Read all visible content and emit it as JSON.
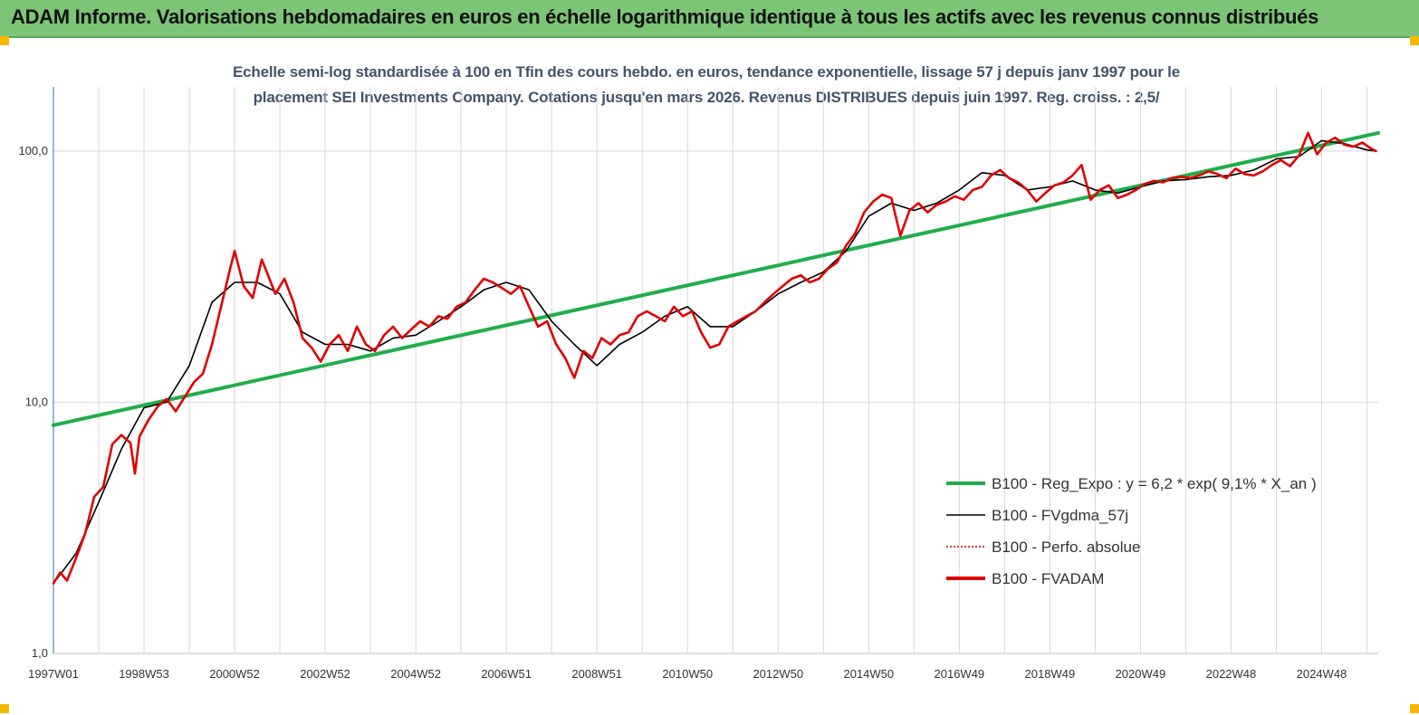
{
  "header": {
    "title": "ADAM Informe. Valorisations hebdomadaires en euros en échelle logarithmique identique à tous les actifs avec les revenus connus distribués"
  },
  "chart_data": {
    "type": "line",
    "title_lines": [
      "Echelle semi-log standardisée à 100 en Tfin des cours hebdo. en euros, tendance exponentielle, lissage 57 j depuis janv 1997 pour le",
      "placement SEI Investments Company. Cotations jusqu'en mars 2026. Revenus DISTRIBUES depuis juin 1997. Reg. croiss. : 2,5/"
    ],
    "y_scale": "log",
    "ylim": [
      1,
      180
    ],
    "y_ticks": [
      {
        "value": 1,
        "label": "1,0"
      },
      {
        "value": 10,
        "label": "10,0"
      },
      {
        "value": 100,
        "label": "100,0"
      }
    ],
    "xlim": [
      1997.0,
      2026.25
    ],
    "x_ticks": [
      {
        "value": 1997.0,
        "label": "1997W01"
      },
      {
        "value": 1999.0,
        "label": "1998W53"
      },
      {
        "value": 2001.0,
        "label": "2000W52"
      },
      {
        "value": 2003.0,
        "label": "2002W52"
      },
      {
        "value": 2005.0,
        "label": "2004W52"
      },
      {
        "value": 2007.0,
        "label": "2006W51"
      },
      {
        "value": 2009.0,
        "label": "2008W51"
      },
      {
        "value": 2011.0,
        "label": "2010W50"
      },
      {
        "value": 2013.0,
        "label": "2012W50"
      },
      {
        "value": 2015.0,
        "label": "2014W50"
      },
      {
        "value": 2017.0,
        "label": "2016W49"
      },
      {
        "value": 2019.0,
        "label": "2018W49"
      },
      {
        "value": 2021.0,
        "label": "2020W49"
      },
      {
        "value": 2023.0,
        "label": "2022W48"
      },
      {
        "value": 2025.0,
        "label": "2024W48"
      }
    ],
    "grid": "vertical",
    "legend_position": "bottom-right",
    "series": [
      {
        "name": "B100 - Reg_Expo : y = 6,2 * exp( 9,1% *  X_an )",
        "color": "#1fae4b",
        "style": "solid-thick",
        "x": [
          1997.0,
          2026.25
        ],
        "y": [
          8.1,
          118
        ]
      },
      {
        "name": "B100 - FVgdma_57j",
        "color": "#000000",
        "style": "solid-thin",
        "x": [
          1997.0,
          1997.5,
          1998.0,
          1998.5,
          1999.0,
          1999.5,
          2000.0,
          2000.5,
          2001.0,
          2001.5,
          2002.0,
          2002.5,
          2003.0,
          2003.5,
          2004.0,
          2004.5,
          2005.0,
          2005.5,
          2006.0,
          2006.5,
          2007.0,
          2007.5,
          2008.0,
          2008.5,
          2009.0,
          2009.5,
          2010.0,
          2010.5,
          2011.0,
          2011.5,
          2012.0,
          2012.5,
          2013.0,
          2013.5,
          2014.0,
          2014.5,
          2015.0,
          2015.5,
          2016.0,
          2016.5,
          2017.0,
          2017.5,
          2018.0,
          2018.5,
          2019.0,
          2019.5,
          2020.0,
          2020.5,
          2021.0,
          2021.5,
          2022.0,
          2022.5,
          2023.0,
          2023.5,
          2024.0,
          2024.5,
          2025.0,
          2025.5,
          2026.0,
          2026.2
        ],
        "y": [
          1.9,
          2.5,
          4.0,
          6.5,
          9.5,
          10.0,
          14.0,
          25.0,
          30.0,
          30.0,
          27.0,
          19.0,
          17.0,
          17.0,
          16.0,
          18.0,
          18.5,
          21.0,
          24.0,
          28.0,
          30.0,
          28.0,
          21.0,
          17.0,
          14.0,
          17.0,
          19.0,
          22.0,
          24.0,
          20.0,
          20.0,
          23.0,
          27.0,
          30.0,
          33.0,
          40.0,
          55.0,
          62.0,
          58.0,
          62.0,
          70.0,
          82.0,
          80.0,
          70.0,
          72.0,
          76.0,
          70.0,
          68.0,
          72.0,
          76.0,
          77.0,
          79.0,
          80.0,
          84.0,
          93.0,
          95.0,
          110.0,
          107.0,
          101.0,
          100.0
        ]
      },
      {
        "name": "B100 - Perfo. absolue",
        "color": "#c00000",
        "style": "dotted",
        "x": [],
        "y": []
      },
      {
        "name": "B100 - FVADAM",
        "color": "#e00000",
        "style": "solid-thick",
        "x": [
          1997.0,
          1997.15,
          1997.3,
          1997.5,
          1997.7,
          1997.9,
          1998.1,
          1998.3,
          1998.5,
          1998.7,
          1998.8,
          1998.9,
          1999.1,
          1999.3,
          1999.5,
          1999.7,
          1999.9,
          2000.1,
          2000.3,
          2000.5,
          2000.7,
          2000.9,
          2001.0,
          2001.2,
          2001.4,
          2001.6,
          2001.8,
          2001.9,
          2002.1,
          2002.3,
          2002.5,
          2002.7,
          2002.9,
          2003.1,
          2003.3,
          2003.5,
          2003.7,
          2003.9,
          2004.1,
          2004.3,
          2004.5,
          2004.7,
          2004.9,
          2005.1,
          2005.3,
          2005.5,
          2005.7,
          2005.9,
          2006.1,
          2006.3,
          2006.5,
          2006.7,
          2006.9,
          2007.1,
          2007.3,
          2007.5,
          2007.7,
          2007.9,
          2008.1,
          2008.3,
          2008.5,
          2008.7,
          2008.9,
          2009.1,
          2009.3,
          2009.5,
          2009.7,
          2009.9,
          2010.1,
          2010.3,
          2010.5,
          2010.7,
          2010.9,
          2011.1,
          2011.3,
          2011.5,
          2011.7,
          2011.9,
          2012.1,
          2012.3,
          2012.5,
          2012.7,
          2012.9,
          2013.1,
          2013.3,
          2013.5,
          2013.7,
          2013.9,
          2014.1,
          2014.3,
          2014.5,
          2014.7,
          2014.9,
          2015.1,
          2015.3,
          2015.5,
          2015.7,
          2015.9,
          2016.1,
          2016.3,
          2016.5,
          2016.7,
          2016.9,
          2017.1,
          2017.3,
          2017.5,
          2017.7,
          2017.9,
          2018.1,
          2018.3,
          2018.5,
          2018.7,
          2018.9,
          2019.1,
          2019.3,
          2019.5,
          2019.7,
          2019.9,
          2020.1,
          2020.3,
          2020.5,
          2020.7,
          2020.9,
          2021.1,
          2021.3,
          2021.5,
          2021.7,
          2021.9,
          2022.1,
          2022.3,
          2022.5,
          2022.7,
          2022.9,
          2023.1,
          2023.3,
          2023.5,
          2023.7,
          2023.9,
          2024.1,
          2024.3,
          2024.5,
          2024.7,
          2024.9,
          2025.1,
          2025.3,
          2025.5,
          2025.7,
          2025.9,
          2026.1,
          2026.2
        ],
        "y": [
          1.9,
          2.1,
          1.95,
          2.4,
          3.0,
          4.2,
          4.6,
          6.8,
          7.4,
          6.9,
          5.2,
          7.3,
          8.5,
          9.6,
          10.3,
          9.2,
          10.5,
          12.0,
          13.0,
          17.0,
          24.0,
          34.0,
          40.0,
          29.0,
          26.0,
          37.0,
          30.0,
          27.0,
          31.0,
          25.0,
          18.0,
          16.5,
          14.5,
          17.0,
          18.5,
          16.0,
          20.0,
          17.0,
          16.0,
          18.5,
          20.0,
          18.0,
          19.5,
          21.0,
          20.0,
          22.0,
          21.5,
          24.0,
          25.0,
          28.0,
          31.0,
          30.0,
          28.5,
          27.0,
          29.0,
          24.0,
          20.0,
          21.0,
          17.0,
          15.0,
          12.5,
          16.0,
          15.0,
          18.0,
          17.0,
          18.5,
          19.0,
          22.0,
          23.0,
          22.0,
          21.0,
          24.0,
          22.0,
          23.0,
          19.0,
          16.5,
          17.0,
          20.0,
          21.0,
          22.0,
          23.0,
          25.0,
          27.0,
          29.0,
          31.0,
          32.0,
          30.0,
          31.0,
          34.0,
          36.0,
          42.0,
          47.0,
          57.0,
          63.0,
          67.0,
          65.0,
          46.0,
          58.0,
          62.0,
          57.0,
          61.0,
          63.0,
          66.0,
          64.0,
          70.0,
          72.0,
          80.0,
          84.0,
          78.0,
          75.0,
          70.0,
          63.0,
          68.0,
          73.0,
          75.0,
          80.0,
          88.0,
          64.0,
          70.0,
          73.0,
          65.0,
          67.0,
          70.0,
          74.0,
          76.0,
          75.0,
          78.0,
          79.0,
          78.0,
          80.0,
          83.0,
          81.0,
          78.0,
          85.0,
          81.0,
          80.0,
          83.0,
          88.0,
          92.0,
          87.0,
          96.0,
          118.0,
          97.0,
          108.0,
          113.0,
          106.0,
          104.0,
          108.0,
          102.0,
          100.0
        ]
      }
    ]
  }
}
